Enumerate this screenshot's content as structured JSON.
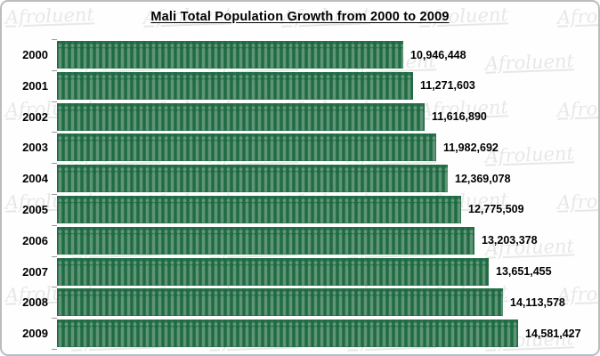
{
  "title": "Mali Total Population Growth from 2000 to 2009",
  "watermark_text": "Afroluent",
  "colors": {
    "bar_background": "#1e6b44",
    "bar_figure": "#6e9c80",
    "label_text": "#000000",
    "watermark": "#9a9a9a",
    "card_border": "#bcbcbc"
  },
  "chart_data": {
    "type": "bar",
    "orientation": "horizontal",
    "pictogram_style": "repeated-person-silhouettes",
    "title": "Mali Total Population Growth from 2000 to 2009",
    "xlabel": "",
    "ylabel": "",
    "categories": [
      "2000",
      "2001",
      "2002",
      "2003",
      "2004",
      "2005",
      "2006",
      "2007",
      "2008",
      "2009"
    ],
    "values": [
      10946448,
      11271603,
      11616890,
      11982692,
      12369078,
      12775509,
      13203378,
      13651455,
      14113578,
      14581427
    ],
    "value_labels": [
      "10,946,448",
      "11,271,603",
      "11,616,890",
      "11,982,692",
      "12,369,078",
      "12,775,509",
      "13,203,378",
      "13,651,455",
      "14,113,578",
      "14,581,427"
    ],
    "value_axis_visible": false,
    "axis_starts_at_zero": true,
    "xlim": [
      0,
      17000000
    ],
    "grid": false,
    "legend": "none",
    "bar_color": "#1e6b44"
  }
}
